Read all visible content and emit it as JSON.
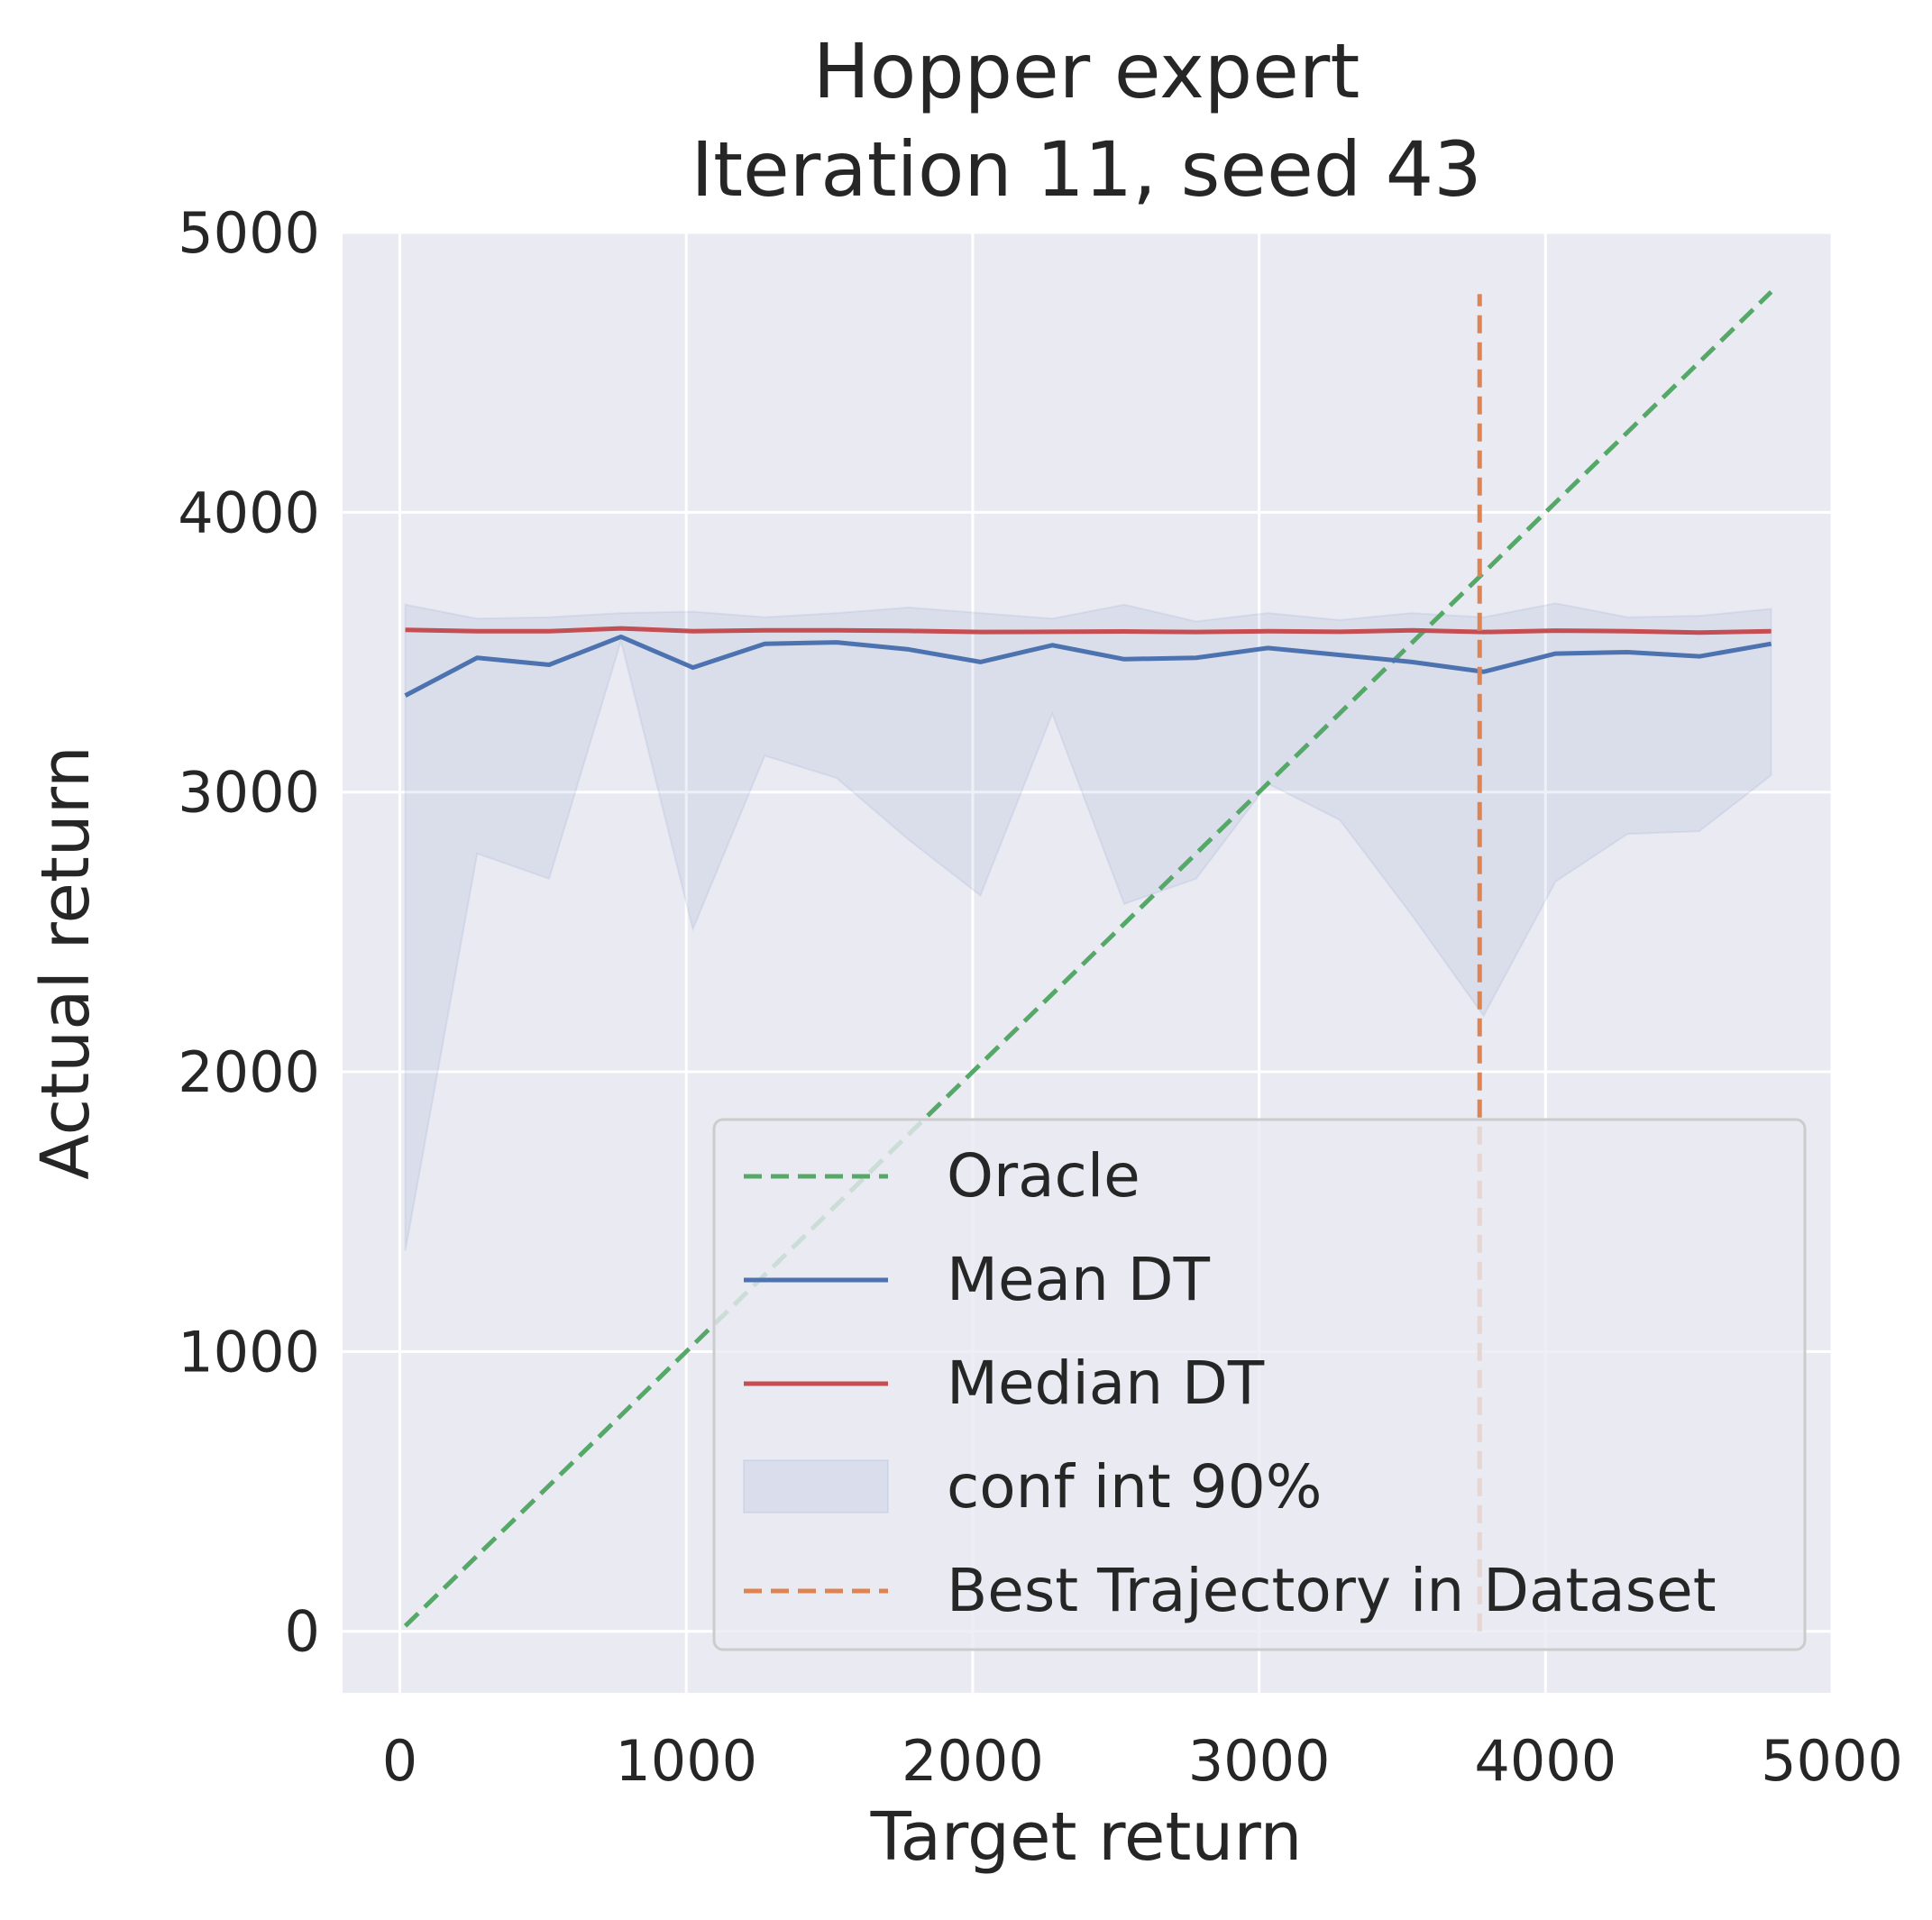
{
  "chart_data": {
    "type": "line",
    "title": "Hopper expert",
    "subtitle": "Iteration 11, seed 43",
    "xlabel": "Target return",
    "ylabel": "Actual return",
    "xlim": [
      -200,
      5000
    ],
    "ylim": [
      -220,
      5000
    ],
    "xticks": [
      0,
      1000,
      2000,
      3000,
      4000,
      5000
    ],
    "yticks": [
      0,
      1000,
      2000,
      3000,
      4000,
      5000
    ],
    "grid": true,
    "legend_position": "lower-right",
    "x": [
      19,
      270,
      521,
      772,
      1023,
      1274,
      1525,
      1776,
      2027,
      2278,
      2529,
      2780,
      3031,
      3282,
      3533,
      3784,
      4035,
      4286,
      4537,
      4788
    ],
    "series": [
      {
        "name": "Oracle",
        "kind": "dashed-line",
        "color": "#55a868",
        "x": [
          19,
          4788
        ],
        "values": [
          19,
          4788
        ]
      },
      {
        "name": "Mean DT",
        "kind": "line",
        "color": "#4c72b0",
        "values": [
          3345,
          3480,
          3455,
          3555,
          3445,
          3530,
          3535,
          3510,
          3465,
          3525,
          3475,
          3480,
          3515,
          3490,
          3465,
          3430,
          3495,
          3500,
          3485,
          3530
        ]
      },
      {
        "name": "Median DT",
        "kind": "line",
        "color": "#c44e52",
        "values": [
          3580,
          3575,
          3575,
          3585,
          3575,
          3578,
          3578,
          3576,
          3572,
          3573,
          3574,
          3572,
          3575,
          3573,
          3578,
          3572,
          3577,
          3575,
          3570,
          3575
        ]
      },
      {
        "name": "conf int 90%",
        "kind": "band",
        "color": "#4c72b0",
        "lower": [
          1360,
          2780,
          2690,
          3540,
          2510,
          3130,
          3050,
          2830,
          2630,
          3280,
          2600,
          2690,
          3030,
          2900,
          2560,
          2200,
          2680,
          2850,
          2860,
          3060
        ],
        "upper": [
          3670,
          3620,
          3625,
          3640,
          3645,
          3625,
          3640,
          3660,
          3640,
          3620,
          3670,
          3610,
          3640,
          3615,
          3640,
          3625,
          3675,
          3625,
          3630,
          3655
        ]
      },
      {
        "name": "Best Trajectory in Dataset",
        "kind": "vertical-dashed",
        "color": "#dd8452",
        "x": 3770,
        "y_range": [
          0,
          4780
        ]
      }
    ]
  }
}
